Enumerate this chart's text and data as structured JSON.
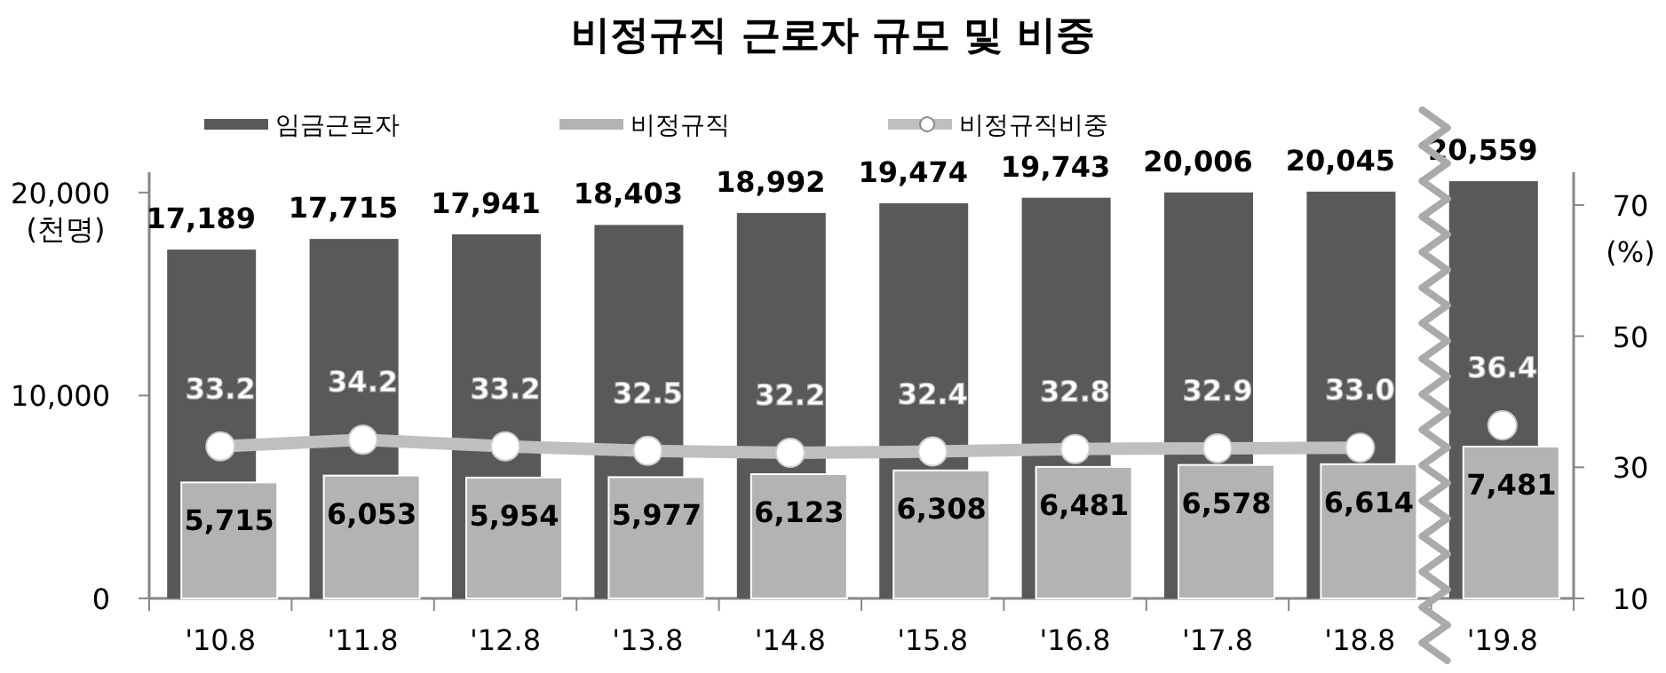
{
  "chart_data": {
    "type": "bar",
    "title": "비정규직 근로자 규모 및 비중",
    "ylabel": "(천명)",
    "y2label": "(%)",
    "categories": [
      "'10.8",
      "'11.8",
      "'12.8",
      "'13.8",
      "'14.8",
      "'15.8",
      "'16.8",
      "'17.8",
      "'18.8",
      "'19.8"
    ],
    "series": [
      {
        "name": "임금근로자",
        "color": "#595959",
        "values": [
          17189,
          17715,
          17941,
          18403,
          18992,
          19474,
          19743,
          20006,
          20045,
          20559
        ],
        "value_labels": [
          "17,189",
          "17,715",
          "17,941",
          "18,403",
          "18,992",
          "19,474",
          "19,743",
          "20,006",
          "20,045",
          "20,559"
        ]
      },
      {
        "name": "비정규직",
        "color": "#b3b3b3",
        "values": [
          5715,
          6053,
          5954,
          5977,
          6123,
          6308,
          6481,
          6578,
          6614,
          7481
        ],
        "value_labels": [
          "5,715",
          "6,053",
          "5,954",
          "5,977",
          "6,123",
          "6,308",
          "6,481",
          "6,578",
          "6,614",
          "7,481"
        ]
      },
      {
        "name": "비정규직비중",
        "type": "line",
        "axis": "y2",
        "color": "#bfbfbf",
        "marker": "circle",
        "values": [
          33.2,
          34.2,
          33.2,
          32.5,
          32.2,
          32.4,
          32.8,
          32.9,
          33.0,
          null
        ],
        "value_labels": [
          "33.2",
          "34.2",
          "33.2",
          "32.5",
          "32.2",
          "32.4",
          "32.8",
          "32.9",
          "33.0",
          null
        ]
      },
      {
        "type": "scatter",
        "axis": "y2",
        "color": "#ffffff",
        "marker": "circle",
        "values": [
          null,
          null,
          null,
          null,
          null,
          null,
          null,
          null,
          null,
          36.4
        ],
        "value_labels": [
          null,
          null,
          null,
          null,
          null,
          null,
          null,
          null,
          null,
          "36.4"
        ]
      }
    ],
    "ylim": [
      0,
      21000
    ],
    "yticks": [
      0,
      {
        "value": 10000,
        "label": "10,000"
      },
      {
        "value": 20000,
        "label": "20,000"
      }
    ],
    "y2lim": [
      10,
      75
    ],
    "y2ticks": [
      10,
      30,
      50,
      70
    ],
    "legend": "top",
    "grid": false
  }
}
